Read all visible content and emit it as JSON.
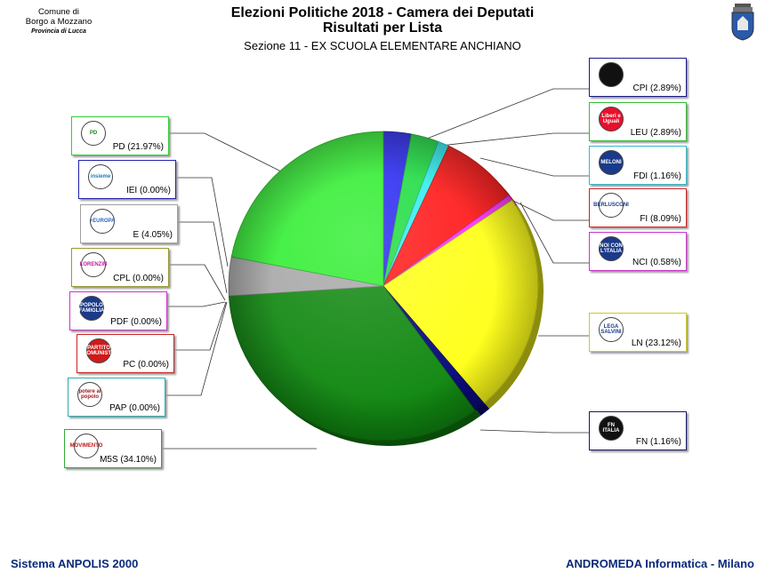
{
  "header": {
    "title": "Elezioni Politiche 2018 - Camera dei Deputati",
    "subtitle": "Risultati per Lista",
    "section": "Sezione 11 - EX SCUOLA ELEMENTARE ANCHIANO"
  },
  "municipality": {
    "line1": "Comune di",
    "line2": "Borgo a Mozzano",
    "line3": "Provincia di Lucca"
  },
  "footer": {
    "left": "Sistema ANPOLIS 2000",
    "right": "ANDROMEDA Informatica - Milano"
  },
  "chart_data": {
    "type": "pie",
    "title": "Risultati per Lista",
    "slices": [
      {
        "label": "CPI (2.89%)",
        "list": "CPI",
        "value": 2.89,
        "color": "#2b2bf0"
      },
      {
        "label": "LEU (2.89%)",
        "list": "LEU",
        "value": 2.89,
        "color": "#22dd44"
      },
      {
        "label": "FDI (1.16%)",
        "list": "FDI",
        "value": 1.16,
        "color": "#33eeee"
      },
      {
        "label": "FI (8.09%)",
        "list": "FI",
        "value": 8.09,
        "color": "#ff1a1a"
      },
      {
        "label": "NCI (0.58%)",
        "list": "NCI",
        "value": 0.58,
        "color": "#ff33ff"
      },
      {
        "label": "LN (23.12%)",
        "list": "LN",
        "value": 23.12,
        "color": "#ffff1a"
      },
      {
        "label": "FN (1.16%)",
        "list": "FN",
        "value": 1.16,
        "color": "#0a0a7a"
      },
      {
        "label": "M5S (34.10%)",
        "list": "M5S",
        "value": 34.1,
        "color": "#118811"
      },
      {
        "label": "PAP (0.00%)",
        "list": "PAP",
        "value": 0.0,
        "color": "#44cccc"
      },
      {
        "label": "PC (0.00%)",
        "list": "PC",
        "value": 0.0,
        "color": "#cc2222"
      },
      {
        "label": "PDF (0.00%)",
        "list": "PDF",
        "value": 0.0,
        "color": "#dd44dd"
      },
      {
        "label": "CPL (0.00%)",
        "list": "CPL",
        "value": 0.0,
        "color": "#999933"
      },
      {
        "label": "E (4.05%)",
        "list": "E",
        "value": 4.05,
        "color": "#a8a8a8"
      },
      {
        "label": "IEI (0.00%)",
        "list": "IEI",
        "value": 0.0,
        "color": "#2222aa"
      },
      {
        "label": "PD (21.97%)",
        "list": "PD",
        "value": 21.97,
        "color": "#33ee33"
      }
    ],
    "legend": [
      {
        "label": "CPI (2.89%)",
        "border": "#1a1a8a"
      },
      {
        "label": "LEU (2.89%)",
        "border": "#33bb33"
      },
      {
        "label": "FDI (1.16%)",
        "border": "#33bbcc"
      },
      {
        "label": "FI (8.09%)",
        "border": "#cc2222"
      },
      {
        "label": "NCI (0.58%)",
        "border": "#cc33cc"
      },
      {
        "label": "LN (23.12%)",
        "border": "#cccc22"
      },
      {
        "label": "FN (1.16%)",
        "border": "#1a1a6a"
      },
      {
        "label": "PD (21.97%)",
        "border": "#33cc33"
      },
      {
        "label": "IEI (0.00%)",
        "border": "#2222aa"
      },
      {
        "label": "E (4.05%)",
        "border": "#a0a0a0"
      },
      {
        "label": "CPL (0.00%)",
        "border": "#999933"
      },
      {
        "label": "PDF (0.00%)",
        "border": "#cc33cc"
      },
      {
        "label": "PC (0.00%)",
        "border": "#cc2222"
      },
      {
        "label": "PAP (0.00%)",
        "border": "#33aaaa"
      },
      {
        "label": "M5S (34.10%)",
        "border": "#33aa33"
      }
    ],
    "logos": [
      {
        "icon": "cpi-logo-icon",
        "text": "",
        "bg": "#111111",
        "fg": "#ffffff"
      },
      {
        "icon": "leu-logo-icon",
        "text": "Liberi e Uguali",
        "bg": "#e8102a",
        "fg": "#ffffff"
      },
      {
        "icon": "fdi-logo-icon",
        "text": "MELONI",
        "bg": "#1a3a8a",
        "fg": "#ffffff"
      },
      {
        "icon": "fi-logo-icon",
        "text": "BERLUSCONI",
        "bg": "#ffffff",
        "fg": "#1a3a8a"
      },
      {
        "icon": "nci-logo-icon",
        "text": "NOI CON L'ITALIA",
        "bg": "#1a3a8a",
        "fg": "#ffffff"
      },
      {
        "icon": "ln-logo-icon",
        "text": "LEGA SALVINI",
        "bg": "#ffffff",
        "fg": "#1a3a8a"
      },
      {
        "icon": "fn-logo-icon",
        "text": "FN ITALIA",
        "bg": "#111111",
        "fg": "#ffffff"
      },
      {
        "icon": "pd-logo-icon",
        "text": "PD",
        "bg": "#ffffff",
        "fg": "#1a8a1a"
      },
      {
        "icon": "iei-logo-icon",
        "text": "insieme",
        "bg": "#ffffff",
        "fg": "#1a7abf"
      },
      {
        "icon": "e-logo-icon",
        "text": "+EUROPA",
        "bg": "#ffffff",
        "fg": "#2a6abf"
      },
      {
        "icon": "cpl-logo-icon",
        "text": "LORENZIN",
        "bg": "#ffffff",
        "fg": "#c0209a"
      },
      {
        "icon": "pdf-logo-icon",
        "text": "POPOLO FAMIGLIA",
        "bg": "#1a3a8a",
        "fg": "#ffffff"
      },
      {
        "icon": "pc-logo-icon",
        "text": "PARTITO COMUNISTA",
        "bg": "#d01a1a",
        "fg": "#ffffff"
      },
      {
        "icon": "pap-logo-icon",
        "text": "potere al popolo",
        "bg": "#ffffff",
        "fg": "#a01a1a"
      },
      {
        "icon": "m5s-logo-icon",
        "text": "MOVIMENTO",
        "bg": "#ffffff",
        "fg": "#c01a1a"
      }
    ]
  }
}
